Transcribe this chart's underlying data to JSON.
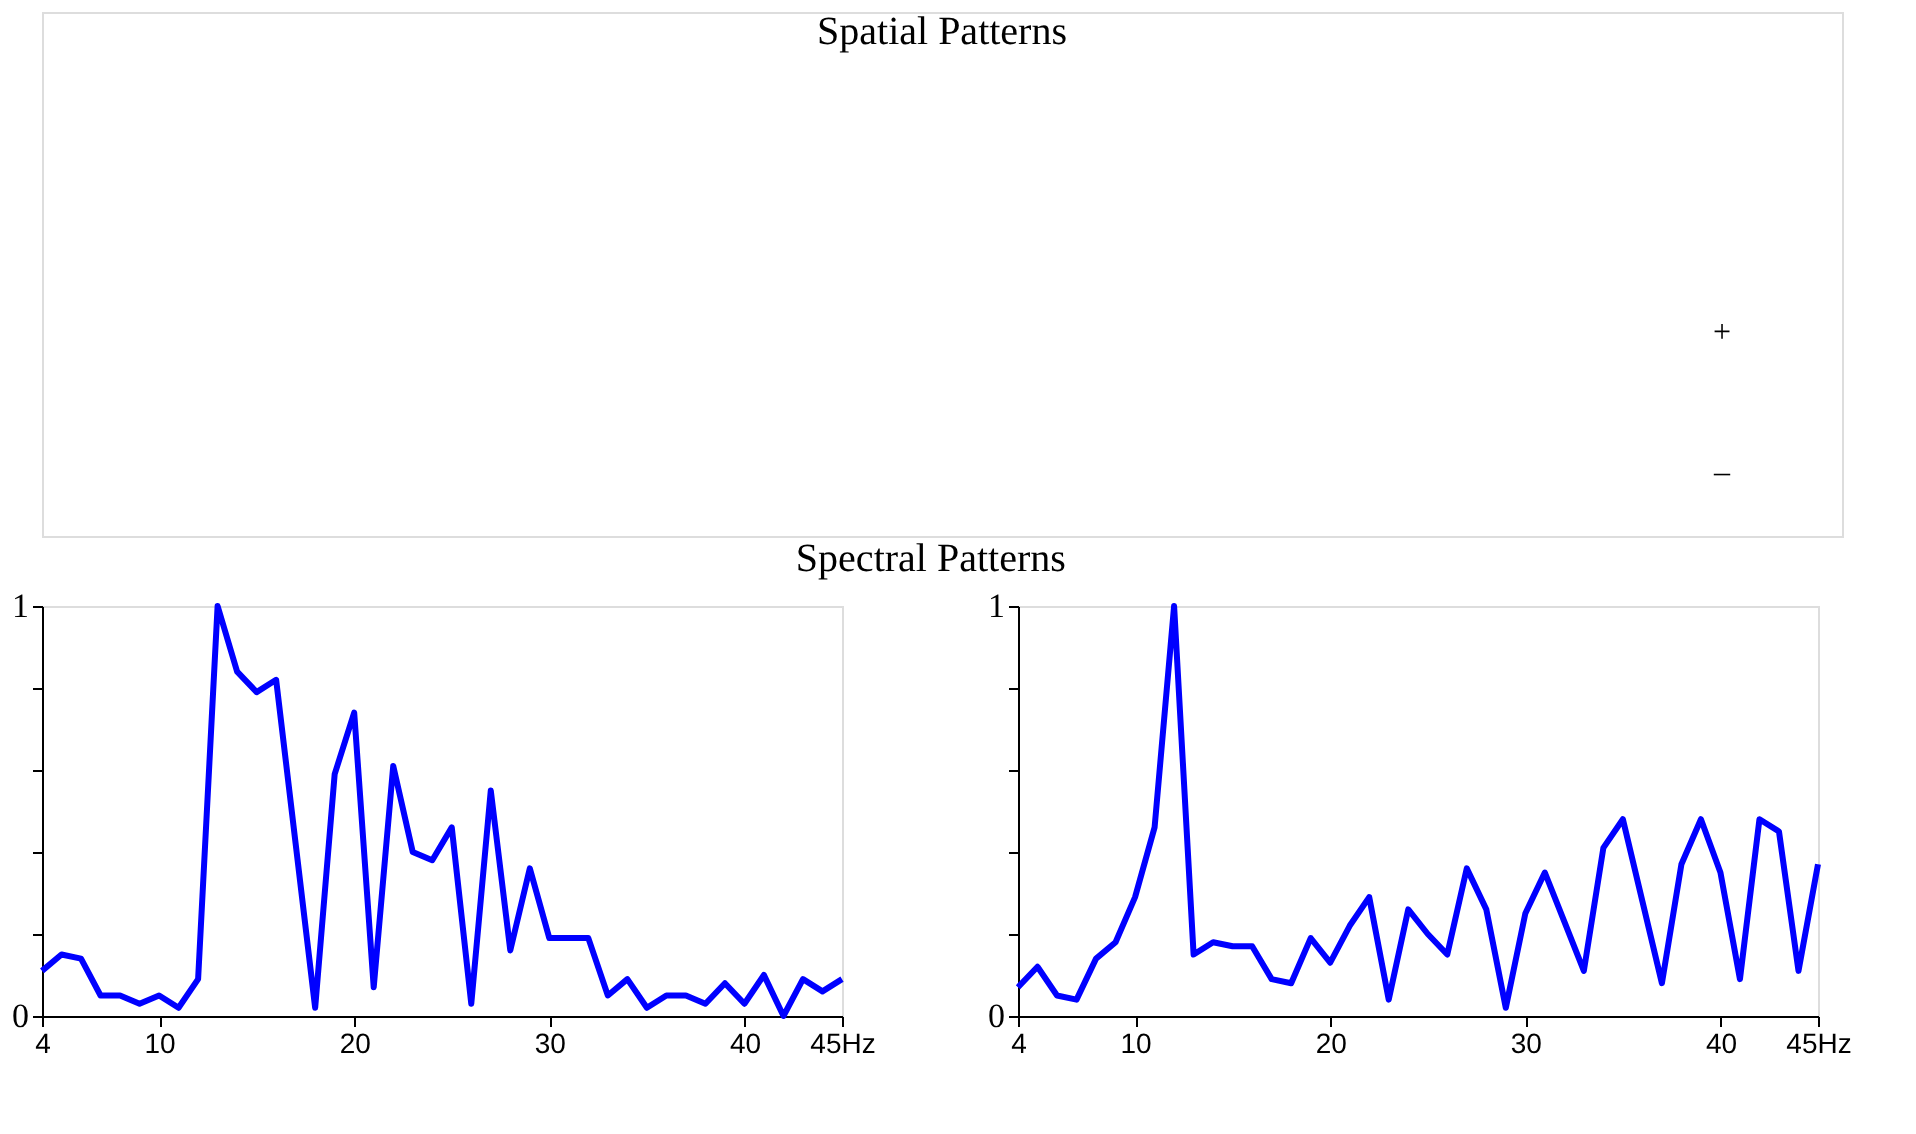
{
  "chart_data": [
    {
      "type": "other",
      "title": "Spatial Patterns",
      "annotations": [
        "+",
        "–"
      ]
    },
    {
      "type": "line",
      "title": "Spectral Patterns",
      "x": [
        4,
        5,
        6,
        7,
        8,
        9,
        10,
        11,
        12,
        13,
        14,
        15,
        16,
        17,
        18,
        19,
        20,
        21,
        22,
        23,
        24,
        25,
        26,
        27,
        28,
        29,
        30,
        31,
        32,
        33,
        34,
        35,
        36,
        37,
        38,
        39,
        40,
        41,
        42,
        43,
        44,
        45
      ],
      "series": [
        {
          "color": "#0000ff",
          "values": [
            0.11,
            0.15,
            0.14,
            0.05,
            0.05,
            0.03,
            0.05,
            0.02,
            0.09,
            1.0,
            0.84,
            0.79,
            0.82,
            0.42,
            0.02,
            0.59,
            0.74,
            0.07,
            0.61,
            0.4,
            0.38,
            0.46,
            0.03,
            0.55,
            0.16,
            0.36,
            0.19,
            0.19,
            0.19,
            0.05,
            0.09,
            0.02,
            0.05,
            0.05,
            0.03,
            0.08,
            0.03,
            0.1,
            0.0,
            0.09,
            0.06,
            0.09
          ]
        }
      ],
      "xlim": [
        4,
        45
      ],
      "xticks": [
        4,
        10,
        20,
        30,
        40,
        {
          "value": 45,
          "label": "45Hz"
        }
      ],
      "ylim": [
        0,
        1
      ],
      "yticks": [
        0,
        {
          "value": 0.2,
          "label": null
        },
        {
          "value": 0.4,
          "label": null
        },
        {
          "value": 0.6,
          "label": null
        },
        {
          "value": 0.8,
          "label": null
        },
        1
      ],
      "grid": false,
      "marker": "none",
      "line_style": "solid"
    },
    {
      "type": "line",
      "x": [
        4,
        5,
        6,
        7,
        8,
        9,
        10,
        11,
        12,
        13,
        14,
        15,
        16,
        17,
        18,
        19,
        20,
        21,
        22,
        23,
        24,
        25,
        26,
        27,
        28,
        29,
        30,
        31,
        32,
        33,
        34,
        35,
        36,
        37,
        38,
        39,
        40,
        41,
        42,
        43,
        44,
        45
      ],
      "series": [
        {
          "color": "#0000ff",
          "values": [
            0.07,
            0.12,
            0.05,
            0.04,
            0.14,
            0.18,
            0.29,
            0.46,
            1.0,
            0.15,
            0.18,
            0.17,
            0.17,
            0.09,
            0.08,
            0.19,
            0.13,
            0.22,
            0.29,
            0.04,
            0.26,
            0.2,
            0.15,
            0.36,
            0.26,
            0.02,
            0.25,
            0.35,
            0.23,
            0.11,
            0.41,
            0.48,
            0.28,
            0.08,
            0.37,
            0.48,
            0.35,
            0.09,
            0.48,
            0.45,
            0.11,
            0.37
          ]
        }
      ],
      "xlim": [
        4,
        45
      ],
      "xticks": [
        4,
        10,
        20,
        30,
        40,
        {
          "value": 45,
          "label": "45Hz"
        }
      ],
      "ylim": [
        0,
        1
      ],
      "yticks": [
        0,
        {
          "value": 0.2,
          "label": null
        },
        {
          "value": 0.4,
          "label": null
        },
        {
          "value": 0.6,
          "label": null
        },
        {
          "value": 0.8,
          "label": null
        },
        1
      ],
      "grid": false,
      "marker": "none",
      "line_style": "solid"
    }
  ]
}
